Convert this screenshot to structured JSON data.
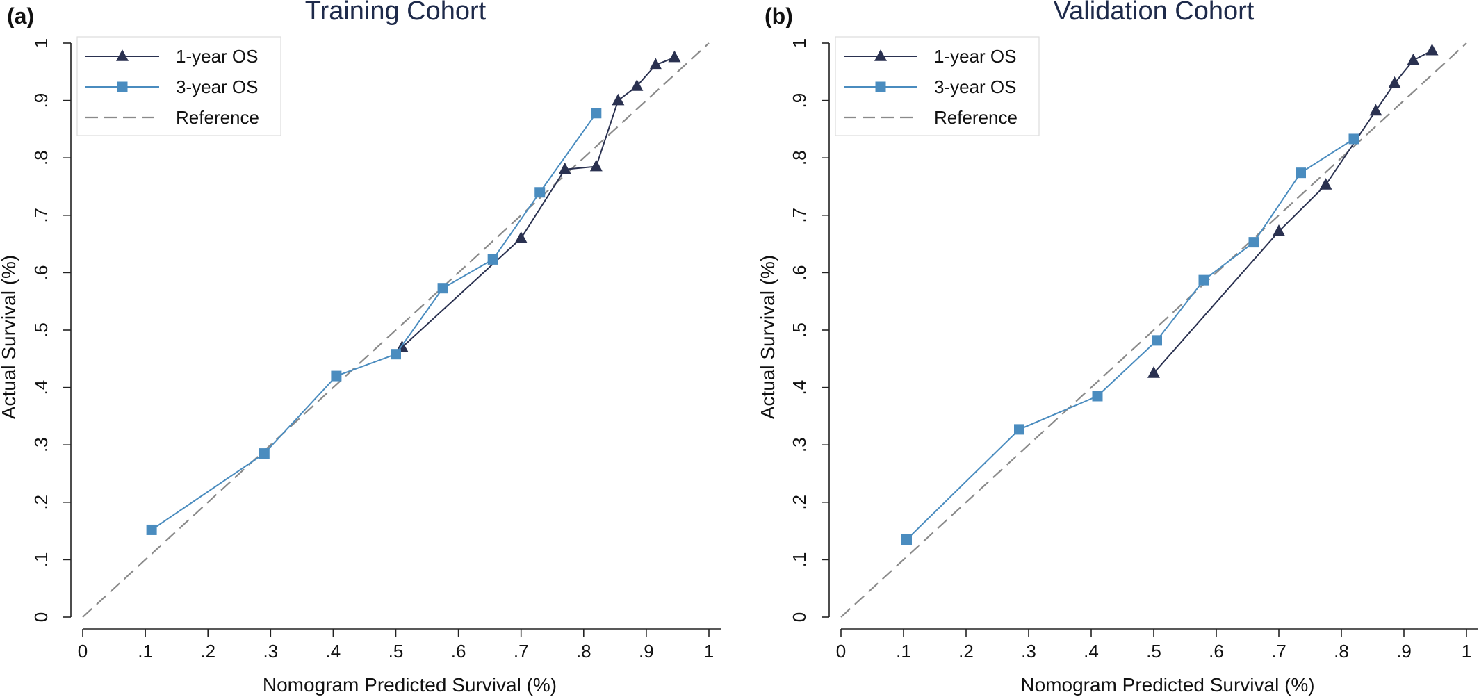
{
  "chart_data": [
    {
      "type": "line",
      "panel_label": "(a)",
      "title": "Training Cohort",
      "xlabel": "Nomogram Predicted Survival (%)",
      "ylabel": "Actual Survival (%)",
      "xlim": [
        0,
        1
      ],
      "ylim": [
        0,
        1
      ],
      "xticks": [
        {
          "v": 0,
          "label": "0"
        },
        {
          "v": 0.1,
          "label": ".1"
        },
        {
          "v": 0.2,
          "label": ".2"
        },
        {
          "v": 0.3,
          "label": ".3"
        },
        {
          "v": 0.4,
          "label": ".4"
        },
        {
          "v": 0.5,
          "label": ".5"
        },
        {
          "v": 0.6,
          "label": ".6"
        },
        {
          "v": 0.7,
          "label": ".7"
        },
        {
          "v": 0.8,
          "label": ".8"
        },
        {
          "v": 0.9,
          "label": ".9"
        },
        {
          "v": 1,
          "label": "1"
        }
      ],
      "yticks": [
        {
          "v": 0,
          "label": "0"
        },
        {
          "v": 0.1,
          "label": ".1"
        },
        {
          "v": 0.2,
          "label": ".2"
        },
        {
          "v": 0.3,
          "label": ".3"
        },
        {
          "v": 0.4,
          "label": ".4"
        },
        {
          "v": 0.5,
          "label": ".5"
        },
        {
          "v": 0.6,
          "label": ".6"
        },
        {
          "v": 0.7,
          "label": ".7"
        },
        {
          "v": 0.8,
          "label": ".8"
        },
        {
          "v": 0.9,
          "label": ".9"
        },
        {
          "v": 1,
          "label": "1"
        }
      ],
      "grid": false,
      "legend_position": "top-left",
      "series": [
        {
          "name": "1-year OS",
          "marker": "triangle",
          "color": "#2a3150",
          "x": [
            0.51,
            0.7,
            0.77,
            0.82,
            0.855,
            0.885,
            0.915,
            0.945
          ],
          "y": [
            0.47,
            0.66,
            0.78,
            0.785,
            0.9,
            0.925,
            0.962,
            0.975
          ]
        },
        {
          "name": "3-year OS",
          "marker": "square",
          "color": "#4a8cbf",
          "x": [
            0.11,
            0.29,
            0.405,
            0.5,
            0.575,
            0.655,
            0.73,
            0.82
          ],
          "y": [
            0.152,
            0.285,
            0.42,
            0.458,
            0.573,
            0.623,
            0.74,
            0.878
          ]
        },
        {
          "name": "Reference",
          "marker": "none",
          "dash": true,
          "color": "#8a8a8a",
          "x": [
            0,
            1
          ],
          "y": [
            0,
            1
          ]
        }
      ]
    },
    {
      "type": "line",
      "panel_label": "(b)",
      "title": "Validation Cohort",
      "xlabel": "Nomogram Predicted Survival (%)",
      "ylabel": "Actual Survival (%)",
      "xlim": [
        0,
        1
      ],
      "ylim": [
        0,
        1
      ],
      "xticks": [
        {
          "v": 0,
          "label": "0"
        },
        {
          "v": 0.1,
          "label": ".1"
        },
        {
          "v": 0.2,
          "label": ".2"
        },
        {
          "v": 0.3,
          "label": ".3"
        },
        {
          "v": 0.4,
          "label": ".4"
        },
        {
          "v": 0.5,
          "label": ".5"
        },
        {
          "v": 0.6,
          "label": ".6"
        },
        {
          "v": 0.7,
          "label": ".7"
        },
        {
          "v": 0.8,
          "label": ".8"
        },
        {
          "v": 0.9,
          "label": ".9"
        },
        {
          "v": 1,
          "label": "1"
        }
      ],
      "yticks": [
        {
          "v": 0,
          "label": "0"
        },
        {
          "v": 0.1,
          "label": ".1"
        },
        {
          "v": 0.2,
          "label": ".2"
        },
        {
          "v": 0.3,
          "label": ".3"
        },
        {
          "v": 0.4,
          "label": ".4"
        },
        {
          "v": 0.5,
          "label": ".5"
        },
        {
          "v": 0.6,
          "label": ".6"
        },
        {
          "v": 0.7,
          "label": ".7"
        },
        {
          "v": 0.8,
          "label": ".8"
        },
        {
          "v": 0.9,
          "label": ".9"
        },
        {
          "v": 1,
          "label": "1"
        }
      ],
      "grid": false,
      "legend_position": "top-left",
      "series": [
        {
          "name": "1-year OS",
          "marker": "triangle",
          "color": "#2a3150",
          "x": [
            0.5,
            0.7,
            0.775,
            0.855,
            0.885,
            0.915,
            0.945
          ],
          "y": [
            0.425,
            0.672,
            0.753,
            0.882,
            0.93,
            0.97,
            0.987
          ]
        },
        {
          "name": "3-year OS",
          "marker": "square",
          "color": "#4a8cbf",
          "x": [
            0.105,
            0.285,
            0.41,
            0.505,
            0.58,
            0.66,
            0.735,
            0.82
          ],
          "y": [
            0.135,
            0.327,
            0.385,
            0.482,
            0.587,
            0.653,
            0.774,
            0.833
          ]
        },
        {
          "name": "Reference",
          "marker": "none",
          "dash": true,
          "color": "#8a8a8a",
          "x": [
            0,
            1
          ],
          "y": [
            0,
            1
          ]
        }
      ]
    }
  ]
}
